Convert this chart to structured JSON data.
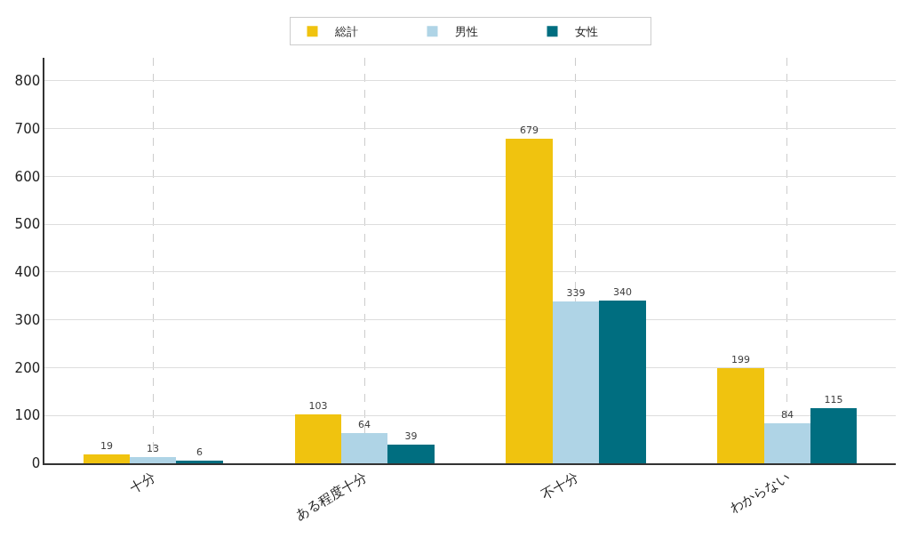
{
  "chart_data": {
    "type": "bar",
    "categories": [
      "十分",
      "ある程度十分",
      "不十分",
      "わからない"
    ],
    "series": [
      {
        "name": "総計",
        "color": "#f0c30f",
        "values": [
          19,
          103,
          679,
          199
        ]
      },
      {
        "name": "男性",
        "color": "#afd4e6",
        "values": [
          13,
          64,
          339,
          84
        ]
      },
      {
        "name": "女性",
        "color": "#006e80",
        "values": [
          6,
          39,
          340,
          115
        ]
      }
    ],
    "ylim": [
      0,
      848
    ],
    "yticks": [
      0,
      100,
      200,
      300,
      400,
      500,
      600,
      700,
      800
    ],
    "grid": true,
    "legend": "top",
    "data_labels": true
  }
}
